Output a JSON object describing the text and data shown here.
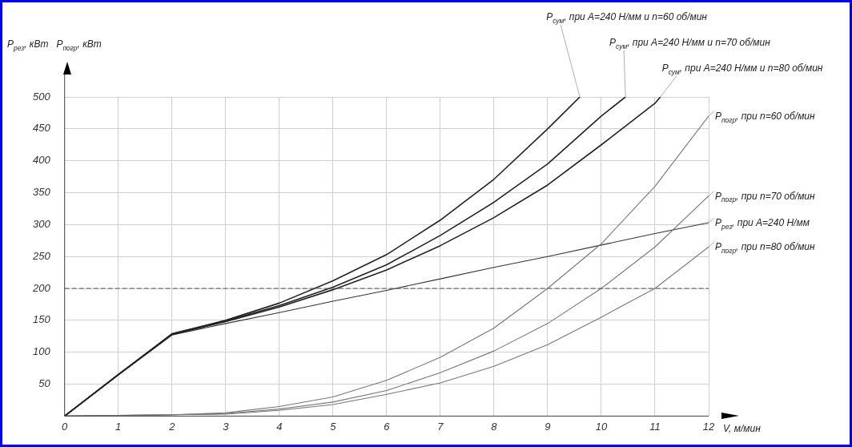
{
  "chart_data": {
    "type": "line",
    "xlabel": "V, м/мин",
    "ylabel": "P$_{рез}$, кВт   P$_{погр}$, кВт",
    "xlim": [
      0,
      12
    ],
    "ylim": [
      0,
      500
    ],
    "xticks": [
      0,
      1,
      2,
      3,
      4,
      5,
      6,
      7,
      8,
      9,
      10,
      11,
      12
    ],
    "yticks": [
      {
        "value": 0,
        "label": null
      },
      50,
      100,
      150,
      200,
      250,
      300,
      350,
      400,
      450,
      500
    ],
    "grid": true,
    "legend": false,
    "marker": "none",
    "line_style": "solid",
    "ref_lines": [
      {
        "axis": "y",
        "value": 200,
        "label": null,
        "color": "#555555",
        "line_style": "dashed"
      }
    ],
    "series": [
      {
        "name": "P$_{сум}$, при A=240 Н/мм и n=60 об/мин",
        "color": "#222222",
        "x": [
          0,
          1,
          2,
          3,
          4,
          5,
          6,
          7,
          8,
          9,
          9.6
        ],
        "values": [
          0,
          65,
          129,
          150,
          177,
          212,
          253,
          307,
          371,
          450,
          500
        ]
      },
      {
        "name": "P$_{сум}$, при A=240 Н/мм и n=70 об/мин",
        "color": "#222222",
        "x": [
          0,
          1,
          2,
          3,
          4,
          5,
          6,
          7,
          8,
          9,
          10,
          10.45
        ],
        "values": [
          0,
          65,
          128,
          149,
          173,
          202,
          237,
          283,
          335,
          395,
          470,
          500
        ]
      },
      {
        "name": "P$_{сум}$, при A=240 Н/мм и n=80 об/мин",
        "color": "#222222",
        "x": [
          0,
          1,
          2,
          3,
          4,
          5,
          6,
          7,
          8,
          9,
          10,
          11,
          11.1
        ],
        "values": [
          0,
          65,
          128,
          148,
          171,
          198,
          229,
          267,
          311,
          362,
          425,
          490,
          500
        ]
      },
      {
        "name": "P$_{погр}$, при n=60 об/мин",
        "color": "#777777",
        "x": [
          0,
          1,
          2,
          3,
          4,
          5,
          6,
          7,
          8,
          9,
          10,
          11,
          12
        ],
        "values": [
          0,
          1,
          2,
          5,
          15,
          30,
          56,
          92,
          138,
          200,
          270,
          360,
          470
        ]
      },
      {
        "name": "P$_{погр}$, при n=70 об/мин",
        "color": "#777777",
        "x": [
          0,
          1,
          2,
          3,
          4,
          5,
          6,
          7,
          8,
          9,
          10,
          11,
          12
        ],
        "values": [
          0,
          1,
          2,
          4,
          11,
          22,
          40,
          68,
          102,
          145,
          200,
          265,
          345
        ]
      },
      {
        "name": "P$_{рез}$, при A=240 Н/мм",
        "color": "#333333",
        "x": [
          0,
          1,
          2,
          3,
          4,
          5,
          6,
          7,
          8,
          9,
          10,
          11,
          12
        ],
        "values": [
          0,
          64,
          127,
          145,
          162,
          180,
          197,
          215,
          233,
          250,
          268,
          286,
          303
        ]
      },
      {
        "name": "P$_{погр}$, при n=80 об/мин",
        "color": "#777777",
        "x": [
          0,
          1,
          2,
          3,
          4,
          5,
          6,
          7,
          8,
          9,
          10,
          11,
          12
        ],
        "values": [
          0,
          1,
          2,
          3,
          9,
          18,
          34,
          52,
          78,
          112,
          155,
          200,
          265
        ]
      }
    ]
  }
}
